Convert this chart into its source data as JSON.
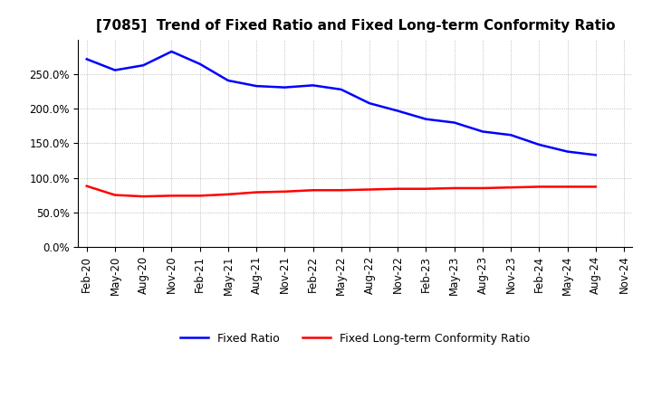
{
  "title": "[7085]  Trend of Fixed Ratio and Fixed Long-term Conformity Ratio",
  "x_labels": [
    "Feb-20",
    "May-20",
    "Aug-20",
    "Nov-20",
    "Feb-21",
    "May-21",
    "Aug-21",
    "Nov-21",
    "Feb-22",
    "May-22",
    "Aug-22",
    "Nov-22",
    "Feb-23",
    "May-23",
    "Aug-23",
    "Nov-23",
    "Feb-24",
    "May-24",
    "Aug-24",
    "Nov-24"
  ],
  "fixed_ratio": [
    272,
    256,
    263,
    283,
    265,
    241,
    233,
    231,
    234,
    228,
    208,
    197,
    185,
    180,
    167,
    162,
    148,
    138,
    133,
    null
  ],
  "fixed_lt_ratio": [
    88,
    75,
    73,
    74,
    74,
    76,
    79,
    80,
    82,
    82,
    83,
    84,
    84,
    85,
    85,
    86,
    87,
    87,
    87,
    null
  ],
  "ylim": [
    0,
    300
  ],
  "yticks": [
    0,
    50,
    100,
    150,
    200,
    250
  ],
  "y_tick_labels": [
    "0.0%",
    "50.0%",
    "100.0%",
    "150.0%",
    "200.0%",
    "250.0%"
  ],
  "fixed_ratio_color": "#0000FF",
  "fixed_lt_ratio_color": "#FF0000",
  "grid_color": "#aaaaaa",
  "background_color": "#ffffff",
  "legend_fixed_ratio": "Fixed Ratio",
  "legend_fixed_lt_ratio": "Fixed Long-term Conformity Ratio",
  "line_width": 1.8,
  "title_fontsize": 11,
  "tick_fontsize": 8.5,
  "legend_fontsize": 9
}
